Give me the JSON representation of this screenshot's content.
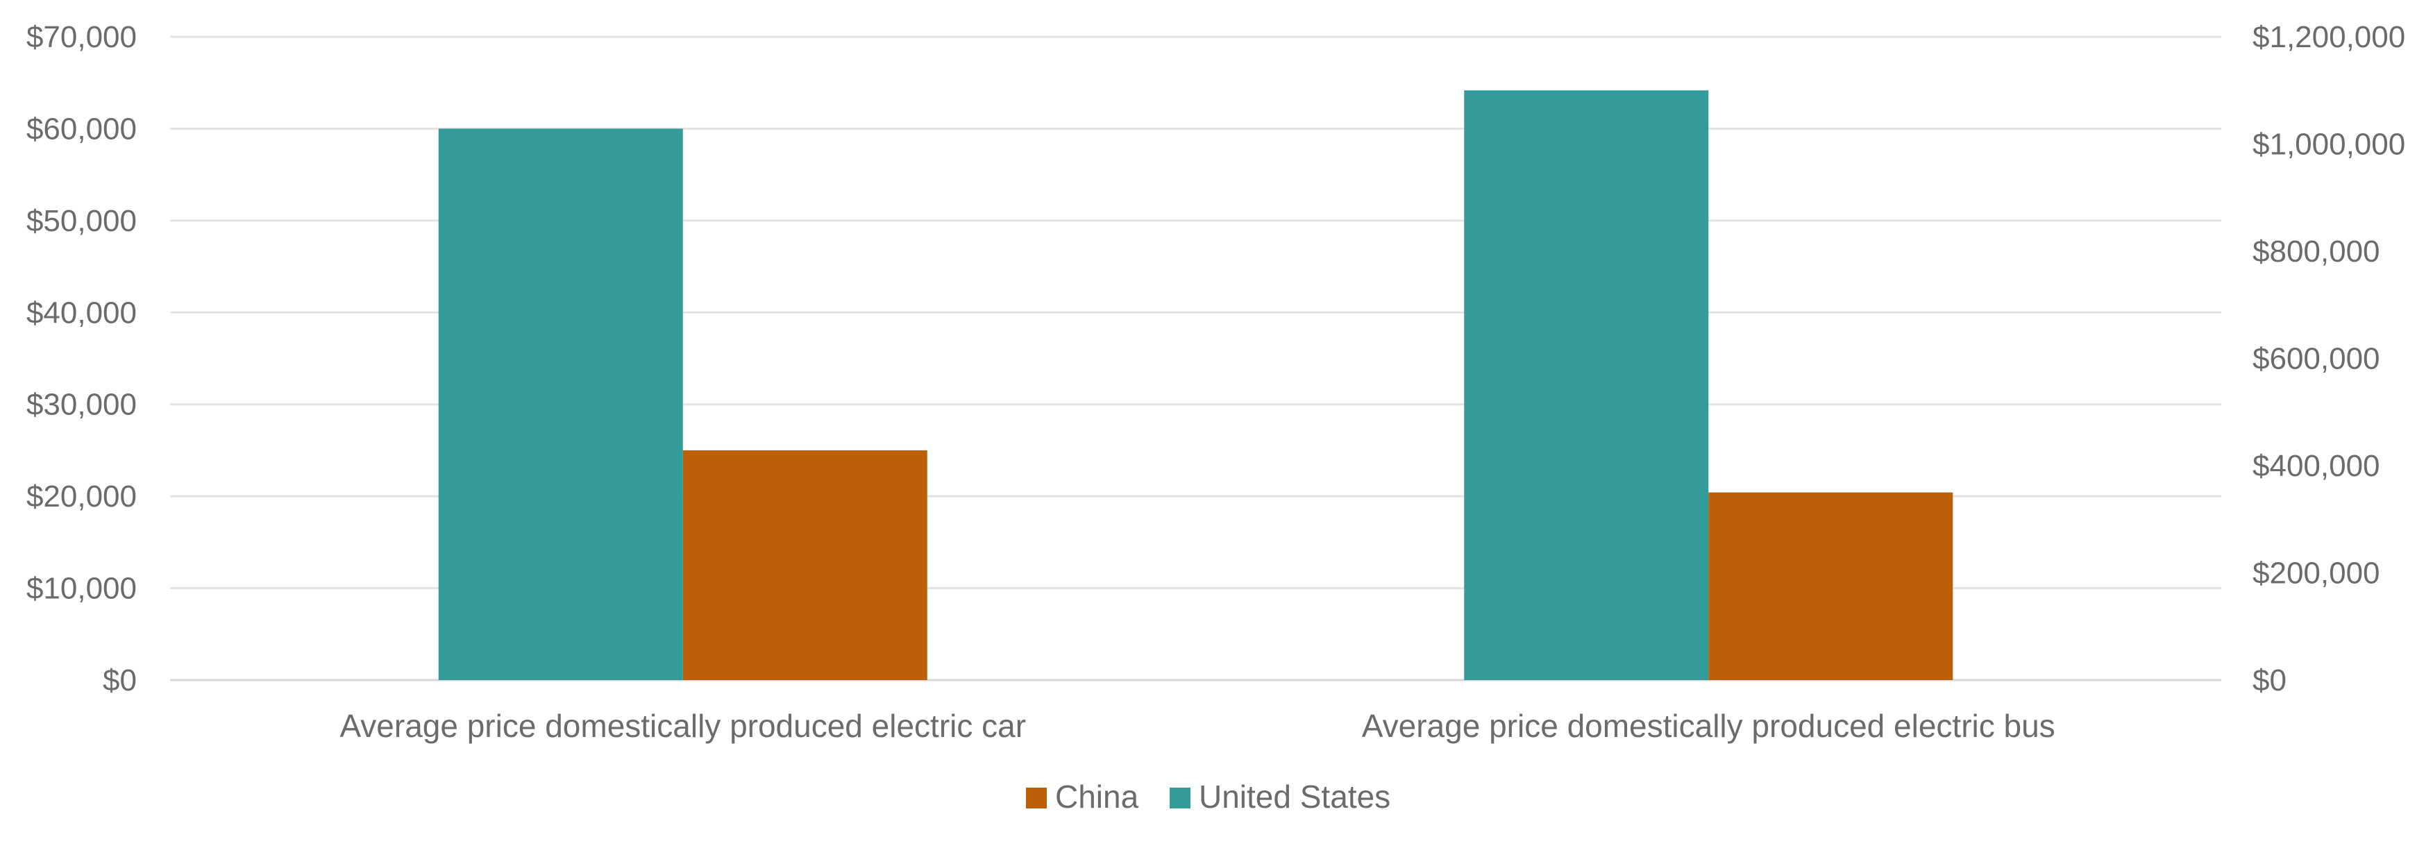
{
  "chart_data": {
    "type": "bar",
    "title": "",
    "categories": [
      "Average price domestically produced electric car",
      "Average price domestically produced electric bus"
    ],
    "series": [
      {
        "name": "United States",
        "color": "#339b99",
        "values": [
          60000,
          1100000
        ],
        "axis": [
          "left",
          "right"
        ]
      },
      {
        "name": "China",
        "color": "#bd5f06",
        "values": [
          25000,
          350000
        ],
        "axis": [
          "left",
          "right"
        ]
      }
    ],
    "left_axis": {
      "ylim": [
        0,
        70000
      ],
      "ticks": [
        "$0",
        "$10,000",
        "$20,000",
        "$30,000",
        "$40,000",
        "$50,000",
        "$60,000",
        "$70,000"
      ]
    },
    "right_axis": {
      "ylim": [
        0,
        1200000
      ],
      "ticks": [
        "$0",
        "$200,000",
        "$400,000",
        "$600,000",
        "$800,000",
        "$1,000,000",
        "$1,200,000"
      ]
    },
    "grid": true,
    "legend": {
      "position": "bottom-center",
      "entries": [
        {
          "name": "China",
          "color": "#bd5f06"
        },
        {
          "name": "United States",
          "color": "#339b99"
        }
      ]
    }
  }
}
